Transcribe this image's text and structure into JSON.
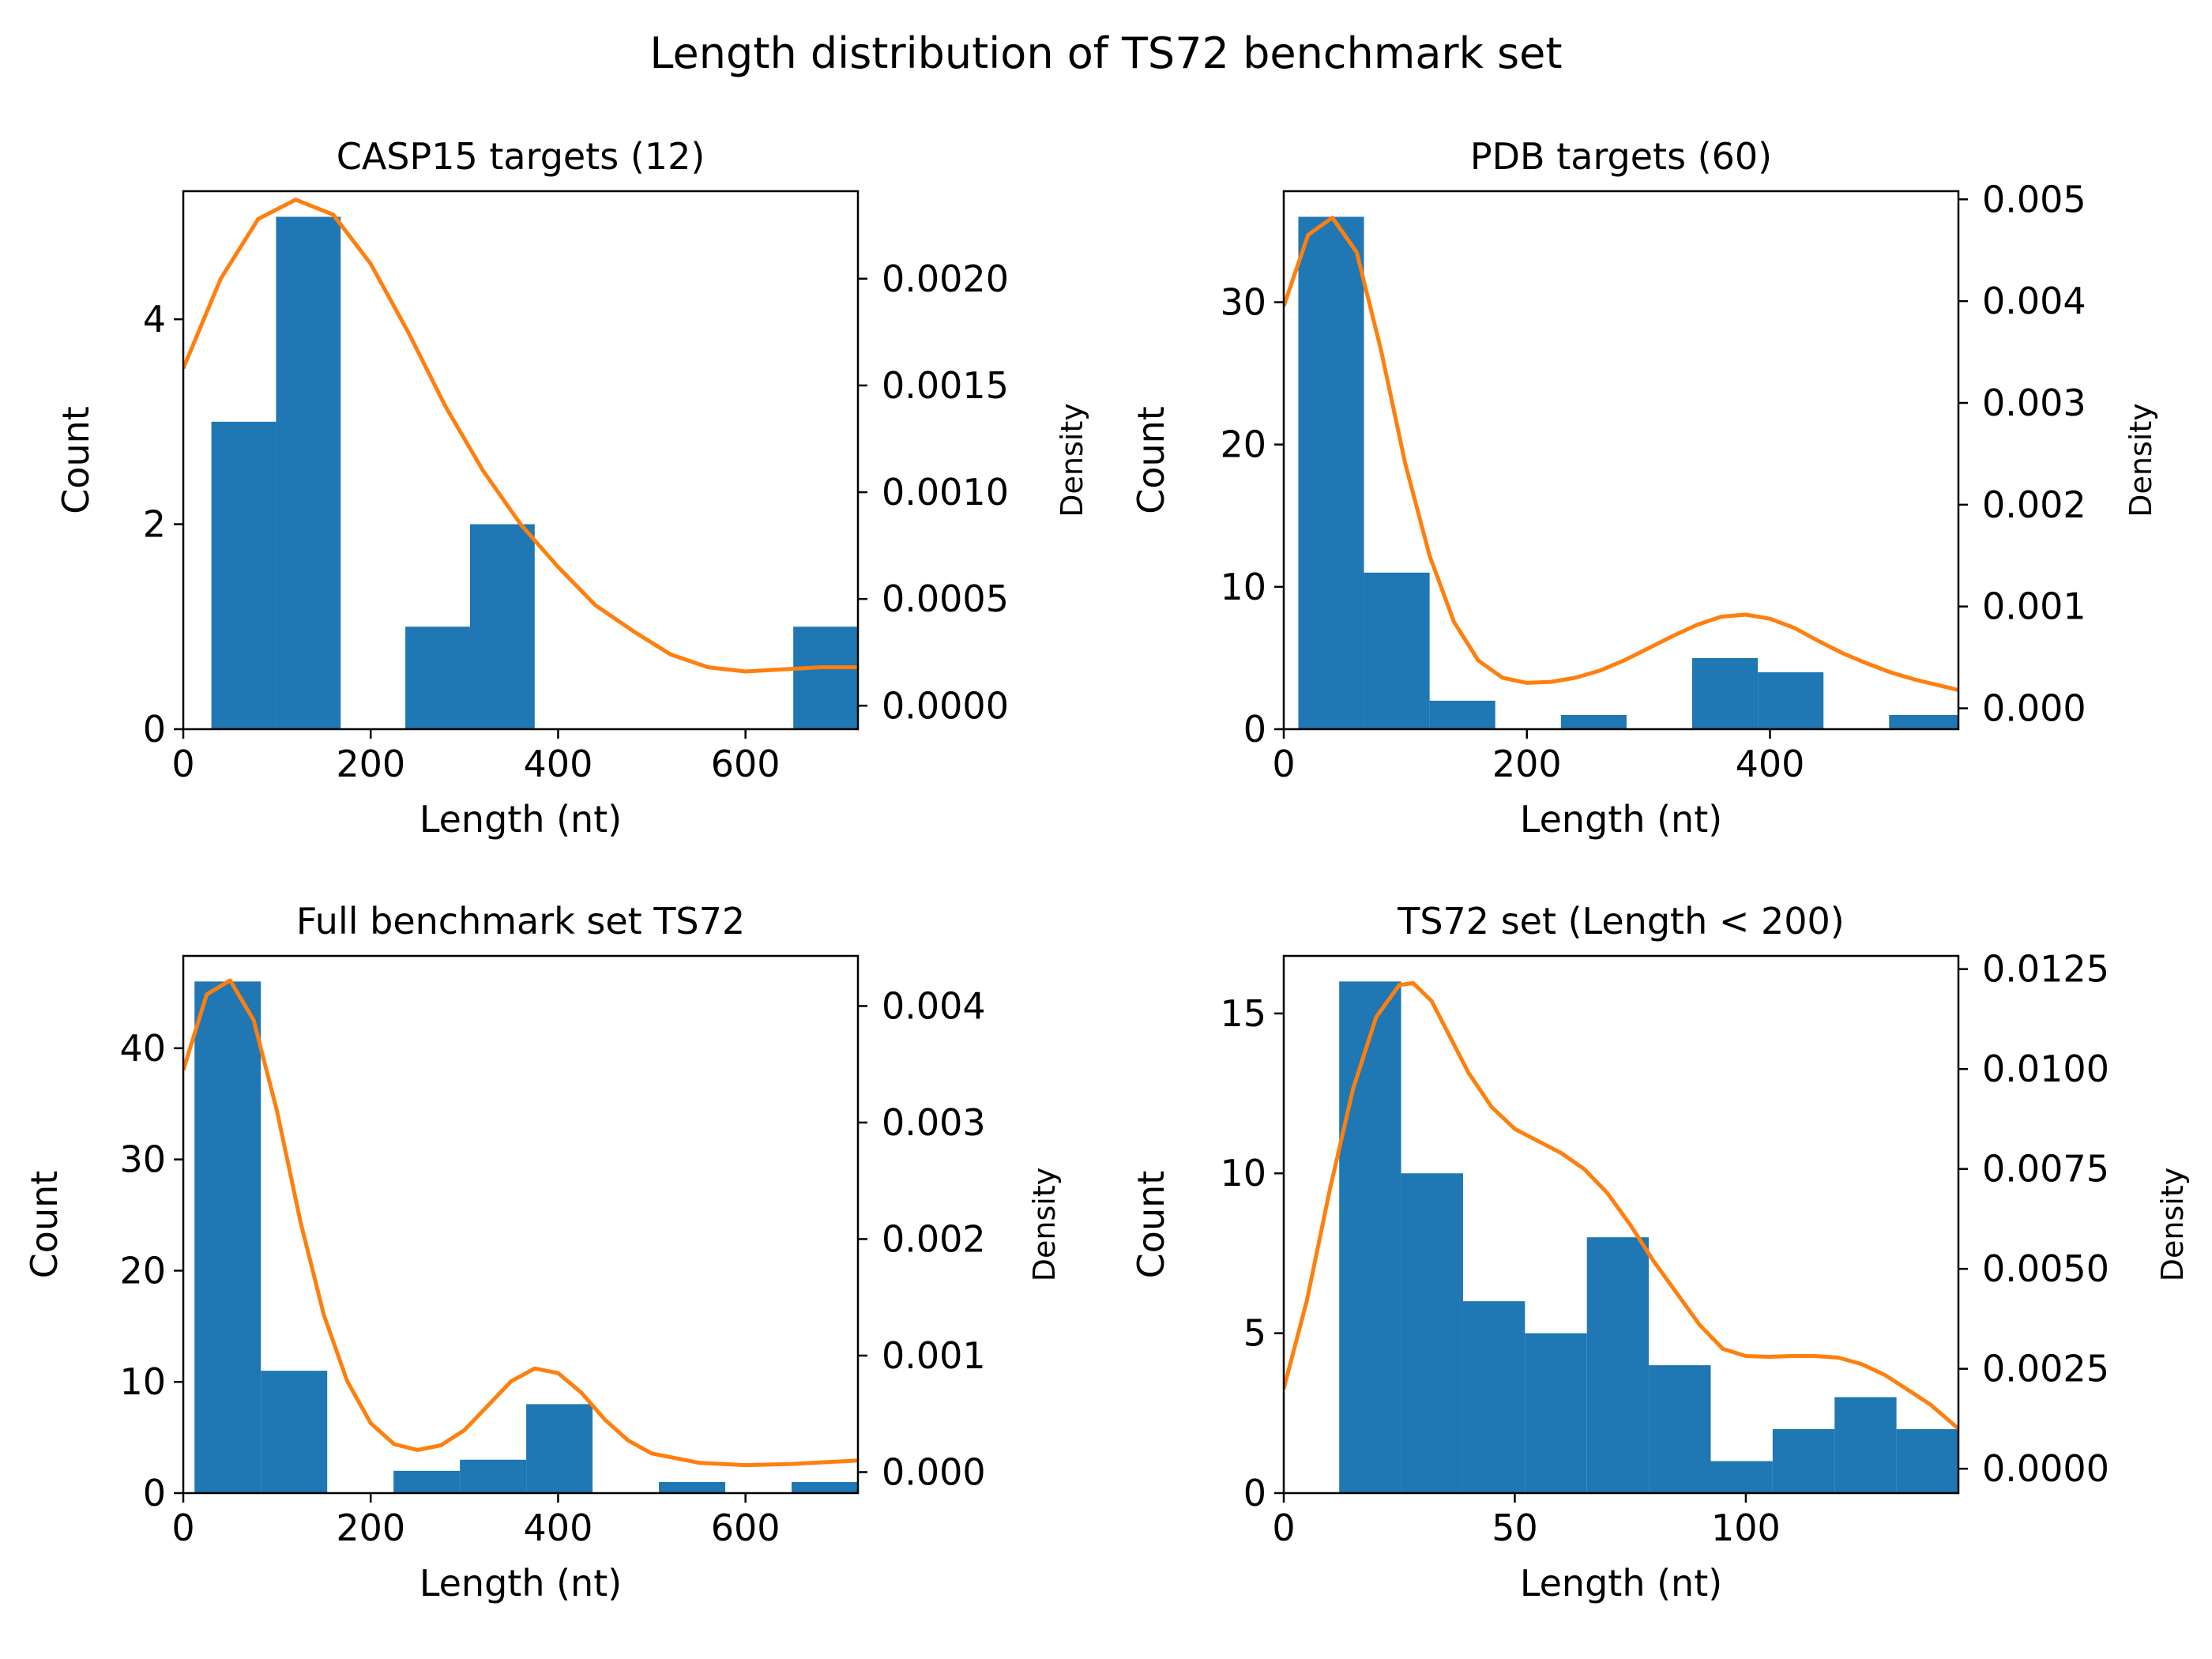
{
  "figure_title": "Length distribution of TS72 benchmark set",
  "colors": {
    "bar": "#1f77b4",
    "kde": "#ff7f0e",
    "axis": "#000000"
  },
  "chart_data": [
    {
      "type": "bar",
      "title": "CASP15 targets (12)",
      "xlabel": "Length (nt)",
      "ylabel": "Count",
      "y2label": "Density",
      "xlim": [
        0,
        720
      ],
      "ylim": [
        0,
        5.25
      ],
      "y2lim": [
        -0.00011,
        0.00241
      ],
      "xticks": [
        0,
        200,
        400,
        600
      ],
      "yticks": [
        0,
        2,
        4
      ],
      "y2ticks": [
        0.0,
        0.0005,
        0.001,
        0.0015,
        0.002
      ],
      "xtick_labels": [
        "0",
        "200",
        "400",
        "600"
      ],
      "ytick_labels": [
        "0",
        "2",
        "4"
      ],
      "y2tick_labels": [
        "0.0000",
        "0.0005",
        "0.0010",
        "0.0015",
        "0.0020"
      ],
      "bins": [
        {
          "x0": 30,
          "x1": 99,
          "count": 3
        },
        {
          "x0": 99,
          "x1": 168,
          "count": 5
        },
        {
          "x0": 168,
          "x1": 237,
          "count": 0
        },
        {
          "x0": 237,
          "x1": 306,
          "count": 1
        },
        {
          "x0": 306,
          "x1": 375,
          "count": 2
        },
        {
          "x0": 375,
          "x1": 444,
          "count": 0
        },
        {
          "x0": 444,
          "x1": 513,
          "count": 0
        },
        {
          "x0": 513,
          "x1": 582,
          "count": 0
        },
        {
          "x0": 582,
          "x1": 651,
          "count": 0
        },
        {
          "x0": 651,
          "x1": 720,
          "count": 1
        }
      ],
      "kde": {
        "x": [
          0,
          40,
          80,
          120,
          160,
          200,
          240,
          280,
          320,
          360,
          400,
          440,
          480,
          520,
          560,
          600,
          640,
          680,
          720
        ],
        "y": [
          0.00158,
          0.002,
          0.00228,
          0.00237,
          0.0023,
          0.00207,
          0.00175,
          0.0014,
          0.0011,
          0.00085,
          0.00065,
          0.00047,
          0.00035,
          0.00024,
          0.00018,
          0.00016,
          0.00017,
          0.00018,
          0.00018
        ]
      }
    },
    {
      "type": "bar",
      "title": "PDB targets (60)",
      "xlabel": "Length (nt)",
      "ylabel": "Count",
      "y2label": "Density",
      "xlim": [
        0,
        555
      ],
      "ylim": [
        0,
        37.8
      ],
      "y2lim": [
        -0.000205,
        0.00508
      ],
      "xticks": [
        0,
        200,
        400
      ],
      "yticks": [
        0,
        10,
        20,
        30
      ],
      "y2ticks": [
        0.0,
        0.001,
        0.002,
        0.003,
        0.004,
        0.005
      ],
      "xtick_labels": [
        "0",
        "200",
        "400"
      ],
      "ytick_labels": [
        "0",
        "10",
        "20",
        "30"
      ],
      "y2tick_labels": [
        "0.000",
        "0.001",
        "0.002",
        "0.003",
        "0.004",
        "0.005"
      ],
      "bins": [
        {
          "x0": 12,
          "x1": 66,
          "count": 36
        },
        {
          "x0": 66,
          "x1": 120,
          "count": 11
        },
        {
          "x0": 120,
          "x1": 174,
          "count": 2
        },
        {
          "x0": 174,
          "x1": 228,
          "count": 0
        },
        {
          "x0": 228,
          "x1": 282,
          "count": 1
        },
        {
          "x0": 282,
          "x1": 336,
          "count": 0
        },
        {
          "x0": 336,
          "x1": 390,
          "count": 5
        },
        {
          "x0": 390,
          "x1": 444,
          "count": 4
        },
        {
          "x0": 444,
          "x1": 498,
          "count": 0
        },
        {
          "x0": 498,
          "x1": 555,
          "count": 1
        }
      ],
      "kde": {
        "x": [
          0,
          20,
          40,
          60,
          80,
          100,
          120,
          140,
          160,
          180,
          200,
          220,
          240,
          260,
          280,
          300,
          320,
          340,
          360,
          380,
          400,
          420,
          440,
          460,
          480,
          500,
          520,
          555
        ],
        "y": [
          0.00395,
          0.00465,
          0.00482,
          0.00448,
          0.00352,
          0.0024,
          0.0015,
          0.00085,
          0.00047,
          0.0003,
          0.00025,
          0.00026,
          0.0003,
          0.00037,
          0.00047,
          0.00059,
          0.00071,
          0.00082,
          0.0009,
          0.00092,
          0.00088,
          0.00079,
          0.00066,
          0.00054,
          0.00044,
          0.00035,
          0.00028,
          0.00018
        ]
      }
    },
    {
      "type": "bar",
      "title": "Full benchmark set TS72",
      "xlabel": "Length (nt)",
      "ylabel": "Count",
      "y2label": "Density",
      "xlim": [
        0,
        720
      ],
      "ylim": [
        0,
        48.3
      ],
      "y2lim": [
        -0.00018,
        0.00443
      ],
      "xticks": [
        0,
        200,
        400,
        600
      ],
      "yticks": [
        0,
        10,
        20,
        30,
        40
      ],
      "y2ticks": [
        0.0,
        0.001,
        0.002,
        0.003,
        0.004
      ],
      "xtick_labels": [
        "0",
        "200",
        "400",
        "600"
      ],
      "ytick_labels": [
        "0",
        "10",
        "20",
        "30",
        "40"
      ],
      "y2tick_labels": [
        "0.000",
        "0.001",
        "0.002",
        "0.003",
        "0.004"
      ],
      "bins": [
        {
          "x0": 12,
          "x1": 82.8,
          "count": 46
        },
        {
          "x0": 82.8,
          "x1": 153.6,
          "count": 11
        },
        {
          "x0": 153.6,
          "x1": 224.4,
          "count": 0
        },
        {
          "x0": 224.4,
          "x1": 295.2,
          "count": 2
        },
        {
          "x0": 295.2,
          "x1": 366,
          "count": 3
        },
        {
          "x0": 366,
          "x1": 436.8,
          "count": 8
        },
        {
          "x0": 436.8,
          "x1": 507.6,
          "count": 0
        },
        {
          "x0": 507.6,
          "x1": 578.4,
          "count": 1
        },
        {
          "x0": 578.4,
          "x1": 649.2,
          "count": 0
        },
        {
          "x0": 649.2,
          "x1": 720,
          "count": 1
        }
      ],
      "kde": {
        "x": [
          0,
          25,
          50,
          75,
          100,
          125,
          150,
          175,
          200,
          225,
          250,
          275,
          300,
          325,
          350,
          375,
          400,
          425,
          450,
          475,
          500,
          550,
          600,
          650,
          720
        ],
        "y": [
          0.00345,
          0.0041,
          0.00422,
          0.00388,
          0.0031,
          0.00215,
          0.00135,
          0.00078,
          0.00042,
          0.00024,
          0.00019,
          0.00023,
          0.00036,
          0.00057,
          0.00078,
          0.00089,
          0.00085,
          0.00068,
          0.00045,
          0.00027,
          0.00016,
          8e-05,
          6e-05,
          7e-05,
          0.0001
        ]
      }
    },
    {
      "type": "bar",
      "title": "TS72 set (Length  <  200)",
      "xlabel": "Length (nt)",
      "ylabel": "Count",
      "y2label": "Density",
      "xlim": [
        0,
        146
      ],
      "ylim": [
        0,
        16.8
      ],
      "y2lim": [
        -0.00061,
        0.01283
      ],
      "xticks": [
        0,
        50,
        100
      ],
      "yticks": [
        0,
        5,
        10,
        15
      ],
      "y2ticks": [
        0.0,
        0.0025,
        0.005,
        0.0075,
        0.01,
        0.0125
      ],
      "xtick_labels": [
        "0",
        "50",
        "100"
      ],
      "ytick_labels": [
        "0",
        "5",
        "10",
        "15"
      ],
      "y2tick_labels": [
        "0.0000",
        "0.0025",
        "0.0050",
        "0.0075",
        "0.0100",
        "0.0125"
      ],
      "bins": [
        {
          "x0": 12,
          "x1": 25.4,
          "count": 16
        },
        {
          "x0": 25.4,
          "x1": 38.8,
          "count": 10
        },
        {
          "x0": 38.8,
          "x1": 52.2,
          "count": 6
        },
        {
          "x0": 52.2,
          "x1": 65.6,
          "count": 5
        },
        {
          "x0": 65.6,
          "x1": 79,
          "count": 8
        },
        {
          "x0": 79,
          "x1": 92.4,
          "count": 4
        },
        {
          "x0": 92.4,
          "x1": 105.8,
          "count": 1
        },
        {
          "x0": 105.8,
          "x1": 119.2,
          "count": 2
        },
        {
          "x0": 119.2,
          "x1": 132.6,
          "count": 3
        },
        {
          "x0": 132.6,
          "x1": 146,
          "count": 2
        }
      ],
      "kde": {
        "x": [
          0,
          5,
          10,
          15,
          20,
          25,
          28,
          32,
          36,
          40,
          45,
          50,
          55,
          60,
          65,
          70,
          75,
          80,
          85,
          90,
          95,
          100,
          105,
          110,
          115,
          120,
          125,
          130,
          135,
          140,
          146
        ],
        "y": [
          0.002,
          0.0042,
          0.007,
          0.0095,
          0.0113,
          0.0121,
          0.01215,
          0.0117,
          0.0108,
          0.0099,
          0.00905,
          0.0085,
          0.0082,
          0.0079,
          0.0075,
          0.0069,
          0.0061,
          0.0052,
          0.0044,
          0.0036,
          0.003,
          0.00282,
          0.0028,
          0.00282,
          0.00282,
          0.00278,
          0.00262,
          0.00235,
          0.00198,
          0.0016,
          0.001
        ]
      }
    }
  ]
}
